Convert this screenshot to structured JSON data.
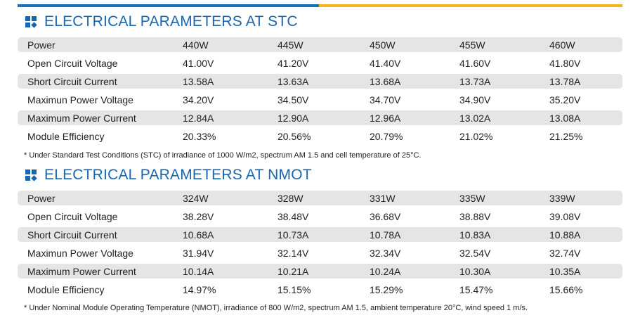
{
  "stc": {
    "title": "ELECTRICAL PARAMETERS AT STC",
    "rows": [
      {
        "label": "Power",
        "values": [
          "440W",
          "445W",
          "450W",
          "455W",
          "460W"
        ]
      },
      {
        "label": "Open Circuit Voltage",
        "values": [
          "41.00V",
          "41.20V",
          "41.40V",
          "41.60V",
          "41.80V"
        ]
      },
      {
        "label": "Short Circuit Current",
        "values": [
          "13.58A",
          "13.63A",
          "13.68A",
          "13.73A",
          "13.78A"
        ]
      },
      {
        "label": "Maximun Power Voltage",
        "values": [
          "34.20V",
          "34.50V",
          "34.70V",
          "34.90V",
          "35.20V"
        ]
      },
      {
        "label": "Maximum Power Current",
        "values": [
          "12.84A",
          "12.90A",
          "12.96A",
          "13.02A",
          "13.08A"
        ]
      },
      {
        "label": "Module Efficiency",
        "values": [
          "20.33%",
          "20.56%",
          "20.79%",
          "21.02%",
          "21.25%"
        ]
      }
    ],
    "note": "* Under Standard Test Conditions (STC) of irradiance of 1000 W/m2, spectrum AM 1.5 and cell temperature of 25°C."
  },
  "nmot": {
    "title": "ELECTRICAL PARAMETERS AT NMOT",
    "rows": [
      {
        "label": "Power",
        "values": [
          "324W",
          "328W",
          "331W",
          "335W",
          "339W"
        ]
      },
      {
        "label": "Open Circuit Voltage",
        "values": [
          "38.28V",
          "38.48V",
          "36.68V",
          "38.88V",
          "39.08V"
        ]
      },
      {
        "label": "Short Circuit Current",
        "values": [
          "10.68A",
          "10.73A",
          "10.78A",
          "10.83A",
          "10.88A"
        ]
      },
      {
        "label": "Maximun Power Voltage",
        "values": [
          "31.94V",
          "32.14V",
          "32.34V",
          "32.54V",
          "32.74V"
        ]
      },
      {
        "label": "Maximum Power Current",
        "values": [
          "10.14A",
          "10.21A",
          "10.24A",
          "10.30A",
          "10.35A"
        ]
      },
      {
        "label": "Module Efficiency",
        "values": [
          "14.97%",
          "15.15%",
          "15.29%",
          "15.47%",
          "15.66%"
        ]
      }
    ],
    "note": "* Under Nominal Module Operating Temperature (NMOT), irradiance of 800 W/m2, spectrum AM 1.5, ambient temperature 20°C, wind speed 1 m/s."
  },
  "colors": {
    "accent": "#1766b1",
    "highlight": "#f2b81c",
    "row_shade": "#e5e5e5"
  },
  "icons": {
    "section": "grid-squares-icon"
  }
}
